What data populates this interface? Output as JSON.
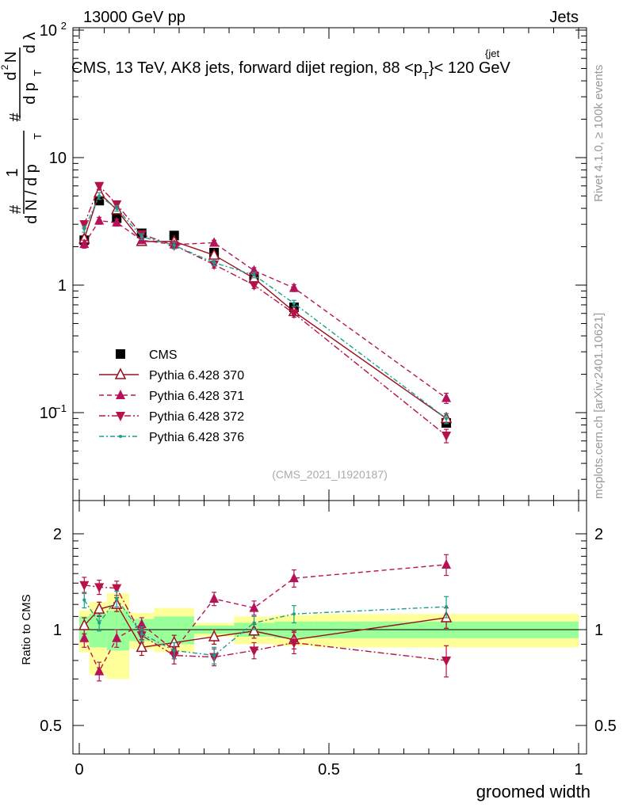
{
  "header": {
    "energy_label": "13000 GeV pp",
    "category_label": "Jets"
  },
  "plot_title": "CMS, 13 TeV, AK8 jets, forward dijet region, 88 <p",
  "plot_title_sup": "{jet",
  "plot_title_sub": "T",
  "plot_title_end": "}< 120 GeV",
  "y_axis": {
    "hash": "#",
    "one": "1",
    "dN_dpT": "d N / d p",
    "T": "T",
    "num_hash": "#",
    "d2N": "d",
    "sq": "2",
    "N": "N",
    "den": "d p",
    "den_T": "T",
    "dlambda": "d λ"
  },
  "side_labels": {
    "rivet": "Rivet 4.1.0, ≥ 100k events",
    "mcplots": "mcplots.cern.ch [arXiv:2401.10621]"
  },
  "analysis_tag": "(CMS_2021_I1920187)",
  "ratio_ylabel": "Ratio to CMS",
  "xlabel": "groomed width",
  "legend": [
    {
      "label": "CMS",
      "color": "#000000",
      "marker": "square"
    },
    {
      "label": "Pythia 6.428 370",
      "color": "#9a0f1d",
      "marker": "open-triangle-up"
    },
    {
      "label": "Pythia 6.428 371",
      "color": "#b5125a",
      "marker": "triangle-up"
    },
    {
      "label": "Pythia 6.428 372",
      "color": "#b5124a",
      "marker": "triangle-down"
    },
    {
      "label": "Pythia 6.428 376",
      "color": "#1c9e8c",
      "marker": "dot"
    }
  ],
  "chart_data": [
    {
      "type": "line",
      "panel": "main",
      "yscale": "log",
      "xlim": [
        0,
        1
      ],
      "ylim": [
        0.025,
        100
      ],
      "x_ticks": [
        "0",
        "0.5",
        "1"
      ],
      "y_ticks": [
        "10^-1",
        "1",
        "10",
        "10^2"
      ],
      "x": [
        0.01,
        0.04,
        0.075,
        0.125,
        0.19,
        0.27,
        0.35,
        0.43,
        0.735
      ],
      "x_edges": [
        0.0,
        0.02,
        0.055,
        0.1,
        0.15,
        0.23,
        0.31,
        0.39,
        0.47,
        1.0
      ],
      "series": [
        {
          "name": "CMS",
          "values": [
            2.25,
            4.6,
            3.35,
            2.55,
            2.45,
            1.8,
            1.15,
            0.67,
            0.083
          ],
          "errors": [
            0.15,
            0.3,
            0.2,
            0.15,
            0.15,
            0.1,
            0.07,
            0.04,
            0.006
          ]
        },
        {
          "name": "Pythia 6.428 370",
          "values": [
            2.3,
            5.3,
            3.9,
            2.2,
            2.2,
            1.72,
            1.13,
            0.62,
            0.09
          ],
          "errors": [
            0.15,
            0.3,
            0.2,
            0.12,
            0.12,
            0.08,
            0.06,
            0.04,
            0.008
          ]
        },
        {
          "name": "Pythia 6.428 371",
          "values": [
            2.1,
            3.2,
            3.1,
            2.25,
            2.08,
            2.15,
            1.3,
            0.95,
            0.13
          ],
          "errors": [
            0.15,
            0.2,
            0.2,
            0.12,
            0.12,
            0.1,
            0.07,
            0.06,
            0.012
          ]
        },
        {
          "name": "Pythia 6.428 372",
          "values": [
            3.0,
            6.0,
            4.3,
            2.5,
            2.05,
            1.45,
            1.0,
            0.6,
            0.066
          ],
          "errors": [
            0.2,
            0.35,
            0.25,
            0.14,
            0.12,
            0.09,
            0.06,
            0.04,
            0.008
          ]
        },
        {
          "name": "Pythia 6.428 376",
          "values": [
            2.75,
            5.0,
            4.0,
            2.4,
            2.05,
            1.5,
            1.2,
            0.72,
            0.09
          ],
          "errors": [
            0.15,
            0.3,
            0.2,
            0.12,
            0.12,
            0.08,
            0.06,
            0.04,
            0.008
          ]
        }
      ]
    },
    {
      "type": "line",
      "panel": "ratio",
      "yscale": "log",
      "ylim": [
        0.4,
        2.4
      ],
      "y_ticks": [
        "0.5",
        "1",
        "2"
      ],
      "x_ticks": [
        "0",
        "0.5",
        "1"
      ],
      "x": [
        0.01,
        0.04,
        0.075,
        0.125,
        0.19,
        0.27,
        0.35,
        0.43,
        0.735
      ],
      "x_edges": [
        0.0,
        0.02,
        0.055,
        0.1,
        0.15,
        0.23,
        0.31,
        0.39,
        0.47,
        1.0
      ],
      "band_stat": [
        [
          0.92,
          1.1
        ],
        [
          0.88,
          1.12
        ],
        [
          0.86,
          1.15
        ],
        [
          0.92,
          1.08
        ],
        [
          0.9,
          1.1
        ],
        [
          0.97,
          1.03
        ],
        [
          0.95,
          1.05
        ],
        [
          0.94,
          1.06
        ],
        [
          0.94,
          1.06
        ]
      ],
      "band_total": [
        [
          0.85,
          1.15
        ],
        [
          0.72,
          1.22
        ],
        [
          0.7,
          1.3
        ],
        [
          0.87,
          1.13
        ],
        [
          0.85,
          1.17
        ],
        [
          0.95,
          1.05
        ],
        [
          0.9,
          1.1
        ],
        [
          0.89,
          1.11
        ],
        [
          0.88,
          1.12
        ]
      ],
      "series": [
        {
          "name": "Pythia 6.428 370",
          "values": [
            1.03,
            1.16,
            1.2,
            0.88,
            0.91,
            0.95,
            0.99,
            0.93,
            1.09
          ],
          "errors": [
            0.06,
            0.06,
            0.06,
            0.05,
            0.05,
            0.05,
            0.05,
            0.06,
            0.08
          ]
        },
        {
          "name": "Pythia 6.428 371",
          "values": [
            0.94,
            0.74,
            0.94,
            1.04,
            0.86,
            1.25,
            1.17,
            1.45,
            1.6
          ],
          "errors": [
            0.06,
            0.05,
            0.06,
            0.05,
            0.05,
            0.06,
            0.06,
            0.09,
            0.12
          ]
        },
        {
          "name": "Pythia 6.428 372",
          "values": [
            1.38,
            1.36,
            1.35,
            0.96,
            0.83,
            0.82,
            0.86,
            0.91,
            0.8
          ],
          "errors": [
            0.08,
            0.07,
            0.07,
            0.05,
            0.05,
            0.05,
            0.05,
            0.07,
            0.09
          ]
        },
        {
          "name": "Pythia 6.428 376",
          "values": [
            1.24,
            1.05,
            1.25,
            0.97,
            0.86,
            0.83,
            1.05,
            1.12,
            1.18
          ],
          "errors": [
            0.07,
            0.06,
            0.07,
            0.05,
            0.05,
            0.05,
            0.05,
            0.07,
            0.09
          ]
        }
      ]
    }
  ]
}
